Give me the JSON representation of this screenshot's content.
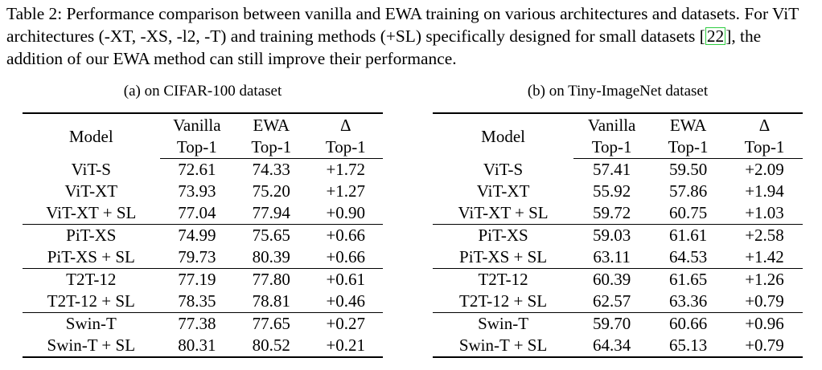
{
  "caption": {
    "text_before_cite": "Table 2: Performance comparison between vanilla and EWA training on various architectures and datasets. For ViT architectures (-XT, -XS, -l2, -T) and training methods (+SL) specifically designed for small datasets ",
    "cite": "22",
    "text_after_cite": ", the addition of our EWA method can still improve their performance."
  },
  "tables": [
    {
      "subtitle": "(a) on CIFAR-100 dataset",
      "header": {
        "model": "Model",
        "vanilla": "Vanilla",
        "ewa": "EWA",
        "delta": "Δ",
        "metric": "Top-1"
      },
      "rows": [
        {
          "model": "ViT-S",
          "vanilla": "72.61",
          "ewa": "74.33",
          "delta": "+1.72"
        },
        {
          "model": "ViT-XT",
          "vanilla": "73.93",
          "ewa": "75.20",
          "delta": "+1.27"
        },
        {
          "model": "ViT-XT + SL",
          "vanilla": "77.04",
          "ewa": "77.94",
          "delta": "+0.90"
        },
        {
          "model": "PiT-XS",
          "vanilla": "74.99",
          "ewa": "75.65",
          "delta": "+0.66"
        },
        {
          "model": "PiT-XS + SL",
          "vanilla": "79.73",
          "ewa": "80.39",
          "delta": "+0.66"
        },
        {
          "model": "T2T-12",
          "vanilla": "77.19",
          "ewa": "77.80",
          "delta": "+0.61"
        },
        {
          "model": "T2T-12 + SL",
          "vanilla": "78.35",
          "ewa": "78.81",
          "delta": "+0.46"
        },
        {
          "model": "Swin-T",
          "vanilla": "77.38",
          "ewa": "77.65",
          "delta": "+0.27"
        },
        {
          "model": "Swin-T + SL",
          "vanilla": "80.31",
          "ewa": "80.52",
          "delta": "+0.21"
        }
      ]
    },
    {
      "subtitle": "(b) on Tiny-ImageNet dataset",
      "header": {
        "model": "Model",
        "vanilla": "Vanilla",
        "ewa": "EWA",
        "delta": "Δ",
        "metric": "Top-1"
      },
      "rows": [
        {
          "model": "ViT-S",
          "vanilla": "57.41",
          "ewa": "59.50",
          "delta": "+2.09"
        },
        {
          "model": "ViT-XT",
          "vanilla": "55.92",
          "ewa": "57.86",
          "delta": "+1.94"
        },
        {
          "model": "ViT-XT + SL",
          "vanilla": "59.72",
          "ewa": "60.75",
          "delta": "+1.03"
        },
        {
          "model": "PiT-XS",
          "vanilla": "59.03",
          "ewa": "61.61",
          "delta": "+2.58"
        },
        {
          "model": "PiT-XS + SL",
          "vanilla": "63.11",
          "ewa": "64.53",
          "delta": "+1.42"
        },
        {
          "model": "T2T-12",
          "vanilla": "60.39",
          "ewa": "61.65",
          "delta": "+1.26"
        },
        {
          "model": "T2T-12 + SL",
          "vanilla": "62.57",
          "ewa": "63.36",
          "delta": "+0.79"
        },
        {
          "model": "Swin-T",
          "vanilla": "59.70",
          "ewa": "60.66",
          "delta": "+0.96"
        },
        {
          "model": "Swin-T + SL",
          "vanilla": "64.34",
          "ewa": "65.13",
          "delta": "+0.79"
        }
      ]
    }
  ]
}
